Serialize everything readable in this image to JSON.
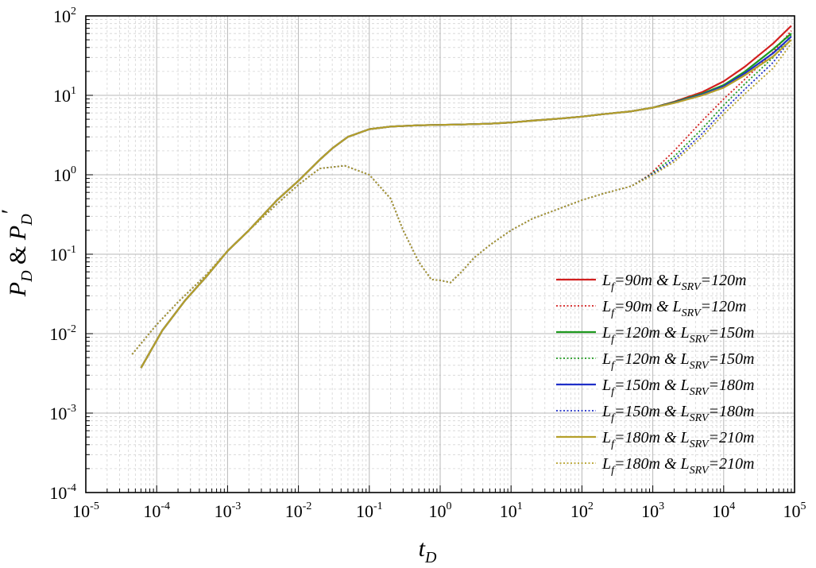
{
  "chart_data": {
    "type": "line",
    "xscale": "log",
    "yscale": "log",
    "xlim": [
      1e-05,
      100000.0
    ],
    "ylim": [
      0.0001,
      100.0
    ],
    "grid": true,
    "legend_position": "right",
    "xlabel": {
      "main": "t",
      "sub": "D"
    },
    "ylabel": {
      "main": "P",
      "sub": "D",
      "joiner": " & ",
      "main2": "P",
      "sub2": "D",
      "prime": "′"
    },
    "x_ticks": [
      {
        "base": "10",
        "exp": "-5"
      },
      {
        "base": "10",
        "exp": "-4"
      },
      {
        "base": "10",
        "exp": "-3"
      },
      {
        "base": "10",
        "exp": "-2"
      },
      {
        "base": "10",
        "exp": "-1"
      },
      {
        "base": "10",
        "exp": "0"
      },
      {
        "base": "10",
        "exp": "1"
      },
      {
        "base": "10",
        "exp": "2"
      },
      {
        "base": "10",
        "exp": "3"
      },
      {
        "base": "10",
        "exp": "4"
      },
      {
        "base": "10",
        "exp": "5"
      }
    ],
    "y_ticks": [
      {
        "base": "10",
        "exp": "-4"
      },
      {
        "base": "10",
        "exp": "-3"
      },
      {
        "base": "10",
        "exp": "-2"
      },
      {
        "base": "10",
        "exp": "-1"
      },
      {
        "base": "10",
        "exp": "0"
      },
      {
        "base": "10",
        "exp": "1"
      },
      {
        "base": "10",
        "exp": "2"
      }
    ],
    "series": [
      {
        "legend": {
          "a": "L",
          "as": "f",
          "b": "=90m",
          "c": "   & L",
          "cs": "SRV",
          "d": "=120m"
        },
        "color": "#d21f1f",
        "style": "solid",
        "x": [
          6e-05,
          0.00012,
          0.00025,
          0.0005,
          0.001,
          0.002,
          0.005,
          0.01,
          0.02,
          0.03,
          0.05,
          0.1,
          0.2,
          0.5,
          1,
          2,
          5,
          10,
          20,
          50,
          100,
          200,
          500,
          1000,
          2000,
          5000,
          10000,
          20000,
          50000,
          90000
        ],
        "y": [
          0.0037,
          0.011,
          0.026,
          0.052,
          0.11,
          0.2,
          0.48,
          0.84,
          1.55,
          2.15,
          3.0,
          3.75,
          4.05,
          4.2,
          4.25,
          4.3,
          4.4,
          4.55,
          4.8,
          5.1,
          5.4,
          5.8,
          6.3,
          7.0,
          8.3,
          11.0,
          15.0,
          23.0,
          45.0,
          75.0
        ]
      },
      {
        "legend": {
          "a": "L",
          "as": "f",
          "b": "=90m",
          "c": "   & L",
          "cs": "SRV",
          "d": "=120m"
        },
        "color": "#d21f1f",
        "style": "dotted",
        "x": [
          4.5e-05,
          0.0001,
          0.0002,
          0.0005,
          0.001,
          0.002,
          0.005,
          0.01,
          0.02,
          0.045,
          0.1,
          0.2,
          0.3,
          0.5,
          0.75,
          1,
          1.4,
          2,
          3,
          5,
          10,
          20,
          50,
          100,
          200,
          500,
          900,
          2000,
          5000,
          10000,
          20000,
          50000,
          90000
        ],
        "y": [
          0.0055,
          0.013,
          0.025,
          0.055,
          0.11,
          0.2,
          0.43,
          0.75,
          1.2,
          1.3,
          1.0,
          0.5,
          0.2,
          0.08,
          0.048,
          0.047,
          0.044,
          0.06,
          0.09,
          0.13,
          0.2,
          0.28,
          0.38,
          0.48,
          0.58,
          0.72,
          1.0,
          2.0,
          4.8,
          9.0,
          16.0,
          35.0,
          65.0
        ]
      },
      {
        "legend": {
          "a": "L",
          "as": "f",
          "b": "=120m",
          "c": " & L",
          "cs": "SRV",
          "d": "=150m"
        },
        "color": "#1f9a1f",
        "style": "solid",
        "x": [
          6e-05,
          0.00012,
          0.00025,
          0.0005,
          0.001,
          0.002,
          0.005,
          0.01,
          0.02,
          0.03,
          0.05,
          0.1,
          0.2,
          0.5,
          1,
          2,
          5,
          10,
          20,
          50,
          100,
          200,
          500,
          1000,
          2000,
          5000,
          10000,
          20000,
          50000,
          90000
        ],
        "y": [
          0.0037,
          0.011,
          0.026,
          0.052,
          0.11,
          0.2,
          0.48,
          0.84,
          1.55,
          2.15,
          3.0,
          3.75,
          4.05,
          4.2,
          4.25,
          4.3,
          4.4,
          4.55,
          4.8,
          5.1,
          5.4,
          5.8,
          6.3,
          7.0,
          8.2,
          10.5,
          13.5,
          20.0,
          38.0,
          60.0
        ]
      },
      {
        "legend": {
          "a": "L",
          "as": "f",
          "b": "=120m",
          "c": " & L",
          "cs": "SRV",
          "d": "=150m"
        },
        "color": "#1f9a1f",
        "style": "dotted",
        "x": [
          4.5e-05,
          0.0001,
          0.0002,
          0.0005,
          0.001,
          0.002,
          0.005,
          0.01,
          0.02,
          0.045,
          0.1,
          0.2,
          0.3,
          0.5,
          0.75,
          1,
          1.4,
          2,
          3,
          5,
          10,
          20,
          50,
          100,
          200,
          500,
          900,
          2000,
          5000,
          10000,
          20000,
          50000,
          90000
        ],
        "y": [
          0.0055,
          0.013,
          0.025,
          0.055,
          0.11,
          0.2,
          0.43,
          0.75,
          1.2,
          1.3,
          1.0,
          0.5,
          0.2,
          0.08,
          0.048,
          0.047,
          0.044,
          0.06,
          0.09,
          0.13,
          0.2,
          0.28,
          0.38,
          0.48,
          0.58,
          0.72,
          0.98,
          1.7,
          3.8,
          7.5,
          14.0,
          30.0,
          58.0
        ]
      },
      {
        "legend": {
          "a": "L",
          "as": "f",
          "b": "=150m",
          "c": " & L",
          "cs": "SRV",
          "d": "=180m"
        },
        "color": "#1f2fc8",
        "style": "solid",
        "x": [
          6e-05,
          0.00012,
          0.00025,
          0.0005,
          0.001,
          0.002,
          0.005,
          0.01,
          0.02,
          0.03,
          0.05,
          0.1,
          0.2,
          0.5,
          1,
          2,
          5,
          10,
          20,
          50,
          100,
          200,
          500,
          1000,
          2000,
          5000,
          10000,
          20000,
          50000,
          90000
        ],
        "y": [
          0.0037,
          0.011,
          0.026,
          0.052,
          0.11,
          0.2,
          0.48,
          0.84,
          1.55,
          2.15,
          3.0,
          3.75,
          4.05,
          4.2,
          4.25,
          4.3,
          4.4,
          4.55,
          4.8,
          5.1,
          5.4,
          5.8,
          6.3,
          7.0,
          8.1,
          10.2,
          13.0,
          19.0,
          34.0,
          55.0
        ]
      },
      {
        "legend": {
          "a": "L",
          "as": "f",
          "b": "=150m",
          "c": " & L",
          "cs": "SRV",
          "d": "=180m"
        },
        "color": "#1f2fc8",
        "style": "dotted",
        "x": [
          4.5e-05,
          0.0001,
          0.0002,
          0.0005,
          0.001,
          0.002,
          0.005,
          0.01,
          0.02,
          0.045,
          0.1,
          0.2,
          0.3,
          0.5,
          0.75,
          1,
          1.4,
          2,
          3,
          5,
          10,
          20,
          50,
          100,
          200,
          500,
          900,
          2000,
          5000,
          10000,
          20000,
          50000,
          90000
        ],
        "y": [
          0.0055,
          0.013,
          0.025,
          0.055,
          0.11,
          0.2,
          0.43,
          0.75,
          1.2,
          1.3,
          1.0,
          0.5,
          0.2,
          0.08,
          0.048,
          0.047,
          0.044,
          0.06,
          0.09,
          0.13,
          0.2,
          0.28,
          0.38,
          0.48,
          0.58,
          0.72,
          0.96,
          1.55,
          3.3,
          6.5,
          12.0,
          26.0,
          52.0
        ]
      },
      {
        "legend": {
          "a": "L",
          "as": "f",
          "b": "=180m",
          "c": " & L",
          "cs": "SRV",
          "d": "=210m"
        },
        "color": "#b5a02a",
        "style": "solid",
        "x": [
          6e-05,
          0.00012,
          0.00025,
          0.0005,
          0.001,
          0.002,
          0.005,
          0.01,
          0.02,
          0.03,
          0.05,
          0.1,
          0.2,
          0.5,
          1,
          2,
          5,
          10,
          20,
          50,
          100,
          200,
          500,
          1000,
          2000,
          5000,
          10000,
          20000,
          50000,
          90000
        ],
        "y": [
          0.0037,
          0.011,
          0.026,
          0.052,
          0.11,
          0.2,
          0.48,
          0.84,
          1.55,
          2.15,
          3.0,
          3.75,
          4.05,
          4.2,
          4.25,
          4.3,
          4.4,
          4.55,
          4.8,
          5.1,
          5.4,
          5.8,
          6.3,
          7.0,
          8.0,
          10.0,
          12.5,
          18.0,
          31.0,
          50.0
        ]
      },
      {
        "legend": {
          "a": "L",
          "as": "f",
          "b": "=180m",
          "c": " & L",
          "cs": "SRV",
          "d": "=210m"
        },
        "color": "#b5a02a",
        "style": "dotted",
        "x": [
          4.5e-05,
          0.0001,
          0.0002,
          0.0005,
          0.001,
          0.002,
          0.005,
          0.01,
          0.02,
          0.045,
          0.1,
          0.2,
          0.3,
          0.5,
          0.75,
          1,
          1.4,
          2,
          3,
          5,
          10,
          20,
          50,
          100,
          200,
          500,
          900,
          2000,
          5000,
          10000,
          20000,
          50000,
          90000
        ],
        "y": [
          0.0055,
          0.013,
          0.025,
          0.055,
          0.11,
          0.2,
          0.43,
          0.75,
          1.2,
          1.3,
          1.0,
          0.5,
          0.2,
          0.08,
          0.048,
          0.047,
          0.044,
          0.06,
          0.09,
          0.13,
          0.2,
          0.28,
          0.38,
          0.48,
          0.58,
          0.72,
          0.94,
          1.45,
          3.0,
          5.8,
          10.5,
          22.0,
          45.0
        ]
      }
    ]
  }
}
